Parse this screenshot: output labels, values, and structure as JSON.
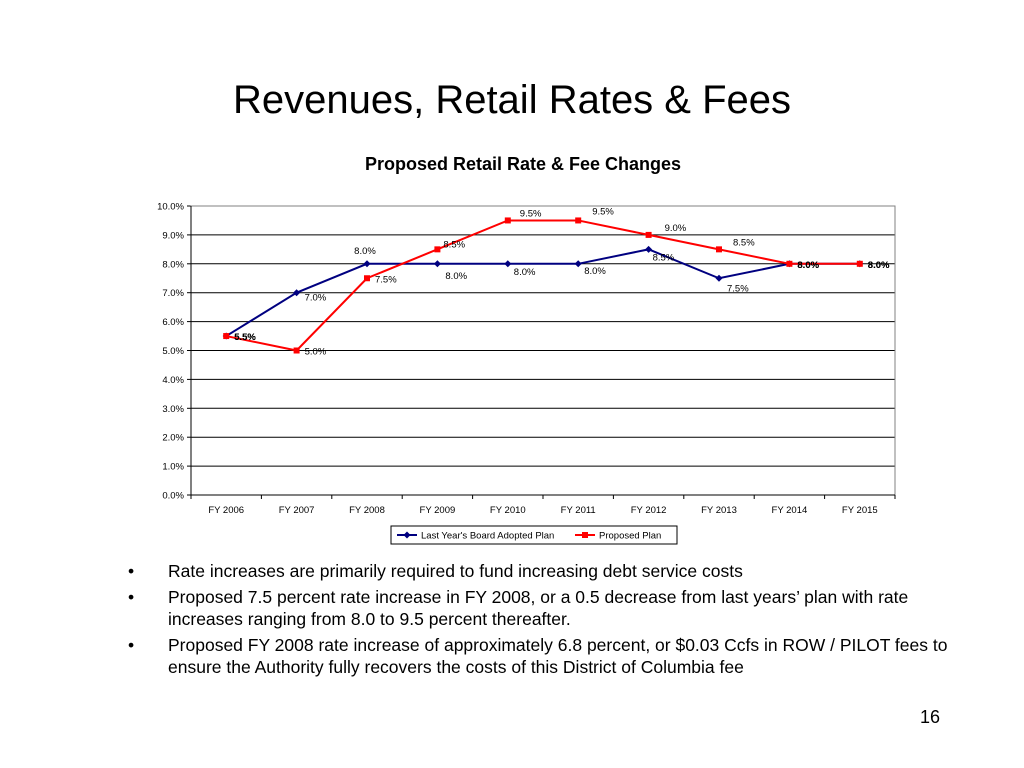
{
  "slide": {
    "title": "Revenues, Retail Rates & Fees",
    "page_number": "16"
  },
  "bullets": [
    "Rate increases are primarily required to fund increasing debt service costs",
    "Proposed 7.5 percent rate increase in FY 2008, or a 0.5 decrease from last years’ plan with rate increases ranging from 8.0 to 9.5 percent thereafter.",
    "Proposed FY 2008 rate increase of approximately 6.8 percent, or $0.03 Ccfs in ROW / PILOT fees to ensure the Authority fully recovers the costs of this District of Columbia fee"
  ],
  "bullet_symbol": "•",
  "chart_data": {
    "type": "line",
    "title": "Proposed Retail Rate & Fee Changes",
    "xlabel": "",
    "ylabel": "",
    "categories": [
      "FY 2006",
      "FY 2007",
      "FY 2008",
      "FY 2009",
      "FY 2010",
      "FY 2011",
      "FY 2012",
      "FY 2013",
      "FY 2014",
      "FY 2015"
    ],
    "ylim": [
      0,
      10
    ],
    "y_ticks": [
      "0.0%",
      "1.0%",
      "2.0%",
      "3.0%",
      "4.0%",
      "5.0%",
      "6.0%",
      "7.0%",
      "8.0%",
      "9.0%",
      "10.0%"
    ],
    "grid": true,
    "legend_position": "bottom",
    "series": [
      {
        "name": "Last Year's Board Adopted Plan",
        "color": "#000080",
        "marker": "diamond",
        "values": [
          5.5,
          7.0,
          8.0,
          8.0,
          8.0,
          8.0,
          8.5,
          7.5,
          8.0,
          8.0
        ],
        "labels": [
          "5.5%",
          "7.0%",
          "8.0%",
          "8.0%",
          "8.0%",
          "8.0%",
          "8.5%",
          "7.5%",
          "8.0%",
          "8.0%"
        ]
      },
      {
        "name": "Proposed Plan",
        "color": "#ff0000",
        "marker": "square",
        "values": [
          5.5,
          5.0,
          7.5,
          8.5,
          9.5,
          9.5,
          9.0,
          8.5,
          8.0,
          8.0
        ],
        "labels": [
          "5.5%",
          "5.0%",
          "7.5%",
          "8.5%",
          "9.5%",
          "9.5%",
          "9.0%",
          "8.5%",
          "8.0%",
          "8.0%"
        ]
      }
    ]
  }
}
